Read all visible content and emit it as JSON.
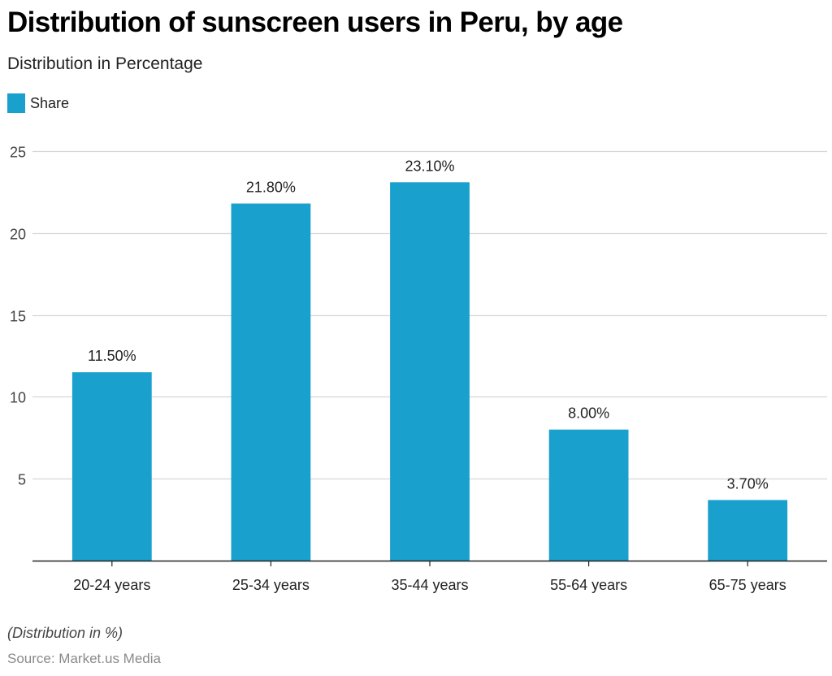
{
  "header": {
    "title": "Distribution of sunscreen users in Peru, by age",
    "subtitle": "Distribution in Percentage"
  },
  "legend": {
    "items": [
      {
        "label": "Share",
        "color": "#1aa0cc"
      }
    ]
  },
  "footer": {
    "note": "(Distribution in %)",
    "source": "Source: Market.us Media"
  },
  "chart_data": {
    "type": "bar",
    "title": "Distribution of sunscreen users in Peru, by age",
    "subtitle": "Distribution in Percentage",
    "xlabel": "",
    "ylabel": "",
    "categories": [
      "20-24 years",
      "25-34 years",
      "35-44 years",
      "55-64 years",
      "65-75 years"
    ],
    "series": [
      {
        "name": "Share",
        "color": "#1aa0cc",
        "values": [
          11.5,
          21.8,
          23.1,
          8.0,
          3.7
        ],
        "labels": [
          "11.50%",
          "21.80%",
          "23.10%",
          "8.00%",
          "3.70%"
        ]
      }
    ],
    "ylim": [
      0,
      25
    ],
    "yticks": [
      5,
      10,
      15,
      20,
      25
    ],
    "grid": true,
    "legend_position": "top-left",
    "note": "(Distribution in %)",
    "source": "Source: Market.us Media"
  }
}
